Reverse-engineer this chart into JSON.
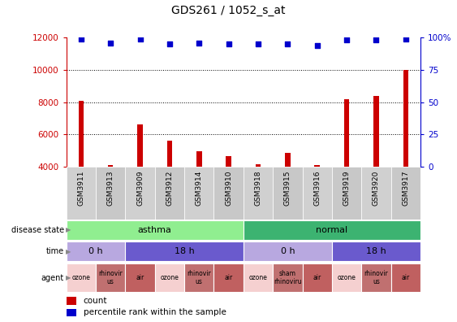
{
  "title": "GDS261 / 1052_s_at",
  "samples": [
    "GSM3911",
    "GSM3913",
    "GSM3909",
    "GSM3912",
    "GSM3914",
    "GSM3910",
    "GSM3918",
    "GSM3915",
    "GSM3916",
    "GSM3919",
    "GSM3920",
    "GSM3917"
  ],
  "counts": [
    8100,
    4100,
    6600,
    5600,
    4950,
    4650,
    4150,
    4850,
    4100,
    8200,
    8400,
    10000
  ],
  "percentiles": [
    99,
    96,
    99,
    95,
    96,
    95,
    95,
    95,
    94,
    98,
    98,
    99
  ],
  "bar_color": "#cc0000",
  "dot_color": "#0000cc",
  "ylim_left": [
    4000,
    12000
  ],
  "ylim_right": [
    0,
    100
  ],
  "yticks_left": [
    4000,
    6000,
    8000,
    10000,
    12000
  ],
  "yticks_right": [
    0,
    25,
    50,
    75,
    100
  ],
  "disease_state": [
    {
      "label": "asthma",
      "start": 0,
      "end": 6,
      "color": "#90ee90"
    },
    {
      "label": "normal",
      "start": 6,
      "end": 12,
      "color": "#3cb371"
    }
  ],
  "time": [
    {
      "label": "0 h",
      "start": 0,
      "end": 2,
      "color": "#b8a8e0"
    },
    {
      "label": "18 h",
      "start": 2,
      "end": 6,
      "color": "#6a5acd"
    },
    {
      "label": "0 h",
      "start": 6,
      "end": 9,
      "color": "#b8a8e0"
    },
    {
      "label": "18 h",
      "start": 9,
      "end": 12,
      "color": "#6a5acd"
    }
  ],
  "agent": [
    {
      "label": "ozone",
      "start": 0,
      "end": 1,
      "color": "#f5d0d0"
    },
    {
      "label": "rhinovir\nus",
      "start": 1,
      "end": 2,
      "color": "#c07070"
    },
    {
      "label": "air",
      "start": 2,
      "end": 3,
      "color": "#c06060"
    },
    {
      "label": "ozone",
      "start": 3,
      "end": 4,
      "color": "#f5d0d0"
    },
    {
      "label": "rhinovir\nus",
      "start": 4,
      "end": 5,
      "color": "#c07070"
    },
    {
      "label": "air",
      "start": 5,
      "end": 6,
      "color": "#c06060"
    },
    {
      "label": "ozone",
      "start": 6,
      "end": 7,
      "color": "#f5d0d0"
    },
    {
      "label": "sham\nrhinoviru",
      "start": 7,
      "end": 8,
      "color": "#c07070"
    },
    {
      "label": "air",
      "start": 8,
      "end": 9,
      "color": "#c06060"
    },
    {
      "label": "ozone",
      "start": 9,
      "end": 10,
      "color": "#f5d0d0"
    },
    {
      "label": "rhinovir\nus",
      "start": 10,
      "end": 11,
      "color": "#c07070"
    },
    {
      "label": "air",
      "start": 11,
      "end": 12,
      "color": "#c06060"
    }
  ],
  "legend_count_color": "#cc0000",
  "legend_dot_color": "#0000cc",
  "background_color": "#ffffff",
  "label_bg_color": "#cccccc"
}
